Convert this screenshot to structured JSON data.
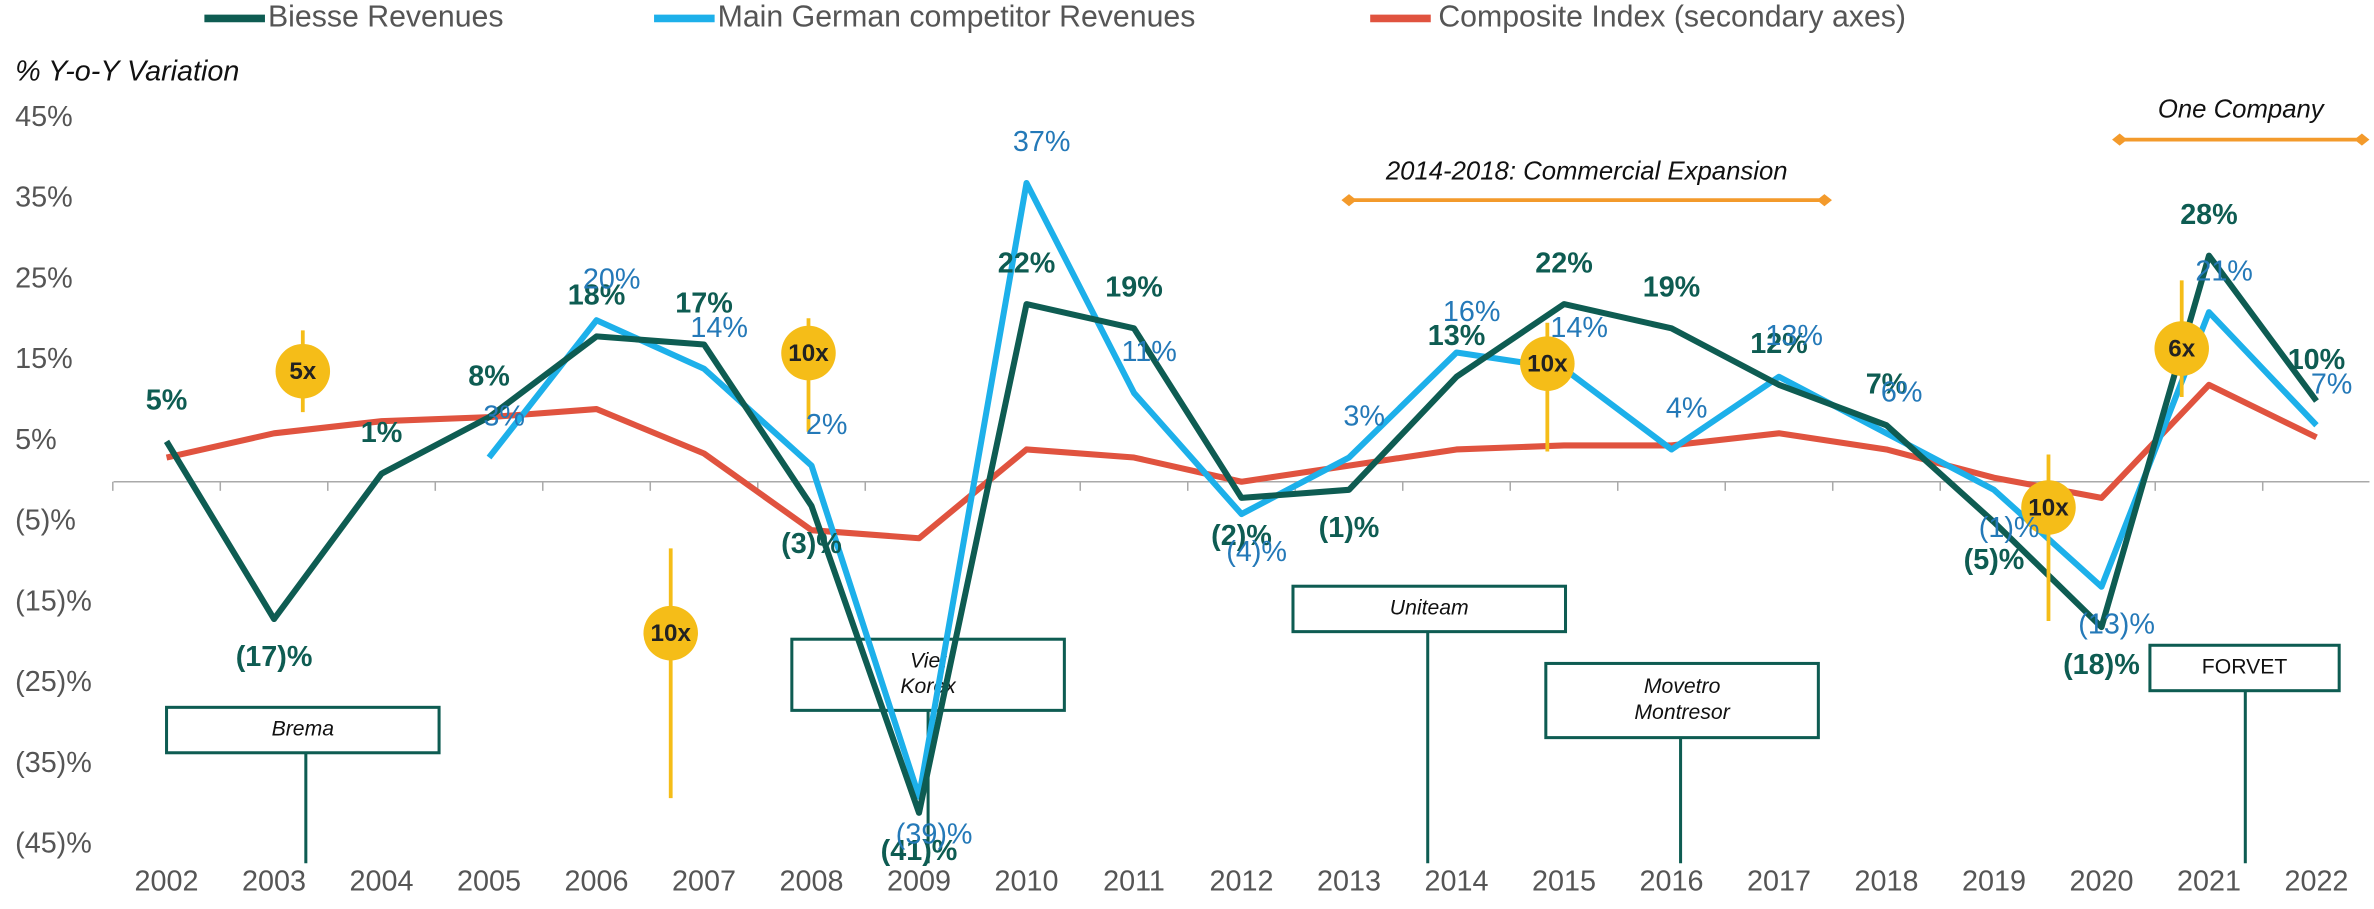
{
  "chart_data": {
    "type": "line",
    "y_axis_title": "% Y-o-Y Variation",
    "categories": [
      "2002",
      "2003",
      "2004",
      "2005",
      "2006",
      "2007",
      "2008",
      "2009",
      "2010",
      "2011",
      "2012",
      "2013",
      "2014",
      "2015",
      "2016",
      "2017",
      "2018",
      "2019",
      "2020",
      "2021",
      "2022"
    ],
    "ylim": [
      -45,
      45
    ],
    "yticks": [
      {
        "value": 45,
        "label": "45%"
      },
      {
        "value": 35,
        "label": "35%"
      },
      {
        "value": 25,
        "label": "25%"
      },
      {
        "value": 15,
        "label": "15%"
      },
      {
        "value": 5,
        "label": "5%"
      },
      {
        "value": -5,
        "label": "(5)%"
      },
      {
        "value": -15,
        "label": "(15)%"
      },
      {
        "value": -25,
        "label": "(25)%"
      },
      {
        "value": -35,
        "label": "(35)%"
      },
      {
        "value": -45,
        "label": "(45)%"
      }
    ],
    "series": [
      {
        "name": "Biesse  Revenues",
        "color": "#0e5c52",
        "values": [
          5,
          -17,
          1,
          8,
          18,
          17,
          -3,
          -41,
          22,
          19,
          -2,
          -1,
          13,
          22,
          19,
          12,
          7,
          -5,
          -18,
          28,
          10
        ],
        "value_labels": [
          "5%",
          "(17)%",
          "1%",
          "8%",
          "18%",
          "17%",
          "(3)%",
          "(41)%",
          "22%",
          "19%",
          "(2)%",
          "(1)%",
          "13%",
          "22%",
          "19%",
          "12%",
          "7%",
          "(5)%",
          "(18)%",
          "28%",
          "10%"
        ]
      },
      {
        "name": "Main German competitor  Revenues",
        "color": "#1db0ea",
        "values": [
          null,
          null,
          null,
          3,
          20,
          14,
          2,
          -39,
          37,
          11,
          -4,
          3,
          16,
          14,
          4,
          13,
          6,
          -1,
          -13,
          21,
          7
        ],
        "value_labels": [
          null,
          null,
          null,
          "3%",
          "20%",
          "14%",
          "2%",
          "(39)%",
          "37%",
          "11%",
          "(4)%",
          "3%",
          "16%",
          "14%",
          "4%",
          "13%",
          "6%",
          "(1)%",
          "(13)%",
          "21%",
          "7%"
        ]
      },
      {
        "name": "Composite Index (secondary axes)",
        "color": "#e0533f",
        "values": [
          3,
          6,
          7.5,
          8,
          9,
          3.5,
          -6,
          -7,
          4,
          3,
          0,
          2,
          4,
          4.5,
          4.5,
          6,
          4,
          0.5,
          -2,
          12,
          5.5
        ]
      }
    ],
    "multiples": [
      "5x",
      "10x",
      "10x",
      "10x",
      "10x",
      "6x"
    ],
    "acquisitions": [
      {
        "lines": [
          "Brema"
        ]
      },
      {
        "lines": [
          "Viet",
          "Korex"
        ]
      },
      {
        "lines": [
          "Uniteam"
        ]
      },
      {
        "lines": [
          "Movetro",
          "Montresor"
        ]
      },
      {
        "lines": [
          "FORVET"
        ]
      }
    ],
    "periods": [
      "2014-2018: Commercial Expansion",
      "One Company"
    ]
  }
}
